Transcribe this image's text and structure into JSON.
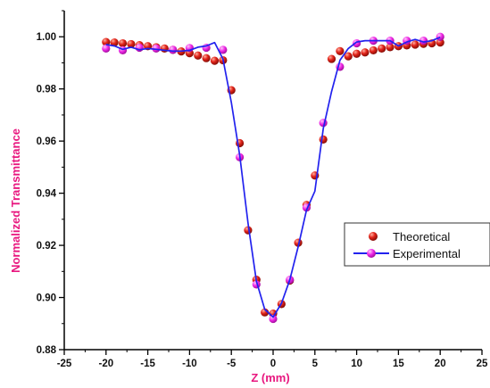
{
  "chart_data": {
    "type": "scatter",
    "title": "",
    "xlabel": "Z (mm)",
    "ylabel": "Normalized Transmittance",
    "axis_label_color": "#e8177f",
    "xlim": [
      -25,
      25
    ],
    "ylim": [
      0.88,
      1.01
    ],
    "x_ticks": [
      -25,
      -20,
      -15,
      -10,
      -5,
      0,
      5,
      10,
      15,
      20,
      25
    ],
    "x_tick_labels": [
      "-25",
      "-20",
      "-15",
      "-10",
      "-5",
      "0",
      "5",
      "10",
      "15",
      "20",
      "25"
    ],
    "y_ticks": [
      0.88,
      0.9,
      0.92,
      0.94,
      0.96,
      0.98,
      1.0
    ],
    "y_tick_labels": [
      "0.88",
      "0.90",
      "0.92",
      "0.94",
      "0.96",
      "0.98",
      "1.00"
    ],
    "grid": false,
    "legend_position": "right",
    "series": [
      {
        "name": "Theoretical",
        "style": "markers",
        "marker": "sphere",
        "color": "#d8180c",
        "x": [
          -20,
          -19,
          -18,
          -17,
          -16,
          -15,
          -14,
          -13,
          -12,
          -11,
          -10,
          -9,
          -8,
          -7,
          -6,
          -5,
          -4,
          -3,
          -2,
          -1,
          0,
          1,
          2,
          3,
          4,
          5,
          6,
          7,
          8,
          9,
          10,
          11,
          12,
          13,
          14,
          15,
          16,
          17,
          18,
          19,
          20
        ],
        "y": [
          0.998,
          0.9978,
          0.9975,
          0.9972,
          0.9968,
          0.9964,
          0.996,
          0.9955,
          0.995,
          0.9944,
          0.9937,
          0.9928,
          0.9918,
          0.9908,
          0.991,
          0.9795,
          0.9592,
          0.9258,
          0.9068,
          0.8943,
          0.8938,
          0.8975,
          0.9065,
          0.921,
          0.9355,
          0.9468,
          0.9606,
          0.9915,
          0.9945,
          0.9925,
          0.9935,
          0.994,
          0.9948,
          0.9955,
          0.996,
          0.9964,
          0.9967,
          0.997,
          0.9973,
          0.9975,
          0.9978
        ]
      },
      {
        "name": "Experimental",
        "style": "markers",
        "marker": "sphere",
        "color": "#ef22e8",
        "x": [
          -20,
          -18,
          -16,
          -14,
          -12,
          -10,
          -8,
          -6,
          -4,
          -2,
          0,
          2,
          4,
          6,
          8,
          10,
          12,
          14,
          16,
          18,
          20
        ],
        "y": [
          0.9955,
          0.9948,
          0.9958,
          0.9955,
          0.995,
          0.9957,
          0.9958,
          0.995,
          0.9538,
          0.905,
          0.8918,
          0.9068,
          0.9345,
          0.967,
          0.9885,
          0.9975,
          0.9985,
          0.9985,
          0.9985,
          0.9985,
          1.0
        ]
      },
      {
        "name": "Experimental",
        "style": "line",
        "color": "#2222ee",
        "x": [
          -20,
          -19,
          -18,
          -17,
          -16,
          -15,
          -14,
          -13,
          -12,
          -11,
          -10,
          -9,
          -8,
          -7,
          -6,
          -5,
          -4,
          -3,
          -2,
          -1,
          0,
          1,
          2,
          3,
          4,
          5,
          6,
          7,
          8,
          9,
          10,
          11,
          12,
          13,
          14,
          15,
          16,
          17,
          18,
          19,
          20
        ],
        "y": [
          0.997,
          0.9965,
          0.9952,
          0.996,
          0.995,
          0.9955,
          0.9952,
          0.9948,
          0.9945,
          0.9945,
          0.9948,
          0.996,
          0.9965,
          0.9978,
          0.9915,
          0.9748,
          0.9545,
          0.9285,
          0.9062,
          0.8955,
          0.8925,
          0.8978,
          0.9068,
          0.9195,
          0.9335,
          0.9408,
          0.9648,
          0.979,
          0.991,
          0.9955,
          0.998,
          0.9985,
          0.9985,
          0.9985,
          0.9985,
          0.9965,
          0.998,
          0.999,
          0.998,
          0.9985,
          0.9998
        ]
      }
    ],
    "legend": [
      {
        "label": "Theoretical",
        "style": "marker",
        "color": "#d8180c"
      },
      {
        "label": "Experimental",
        "style": "line-marker",
        "color": "#2222ee",
        "marker_color": "#ef22e8"
      }
    ]
  }
}
